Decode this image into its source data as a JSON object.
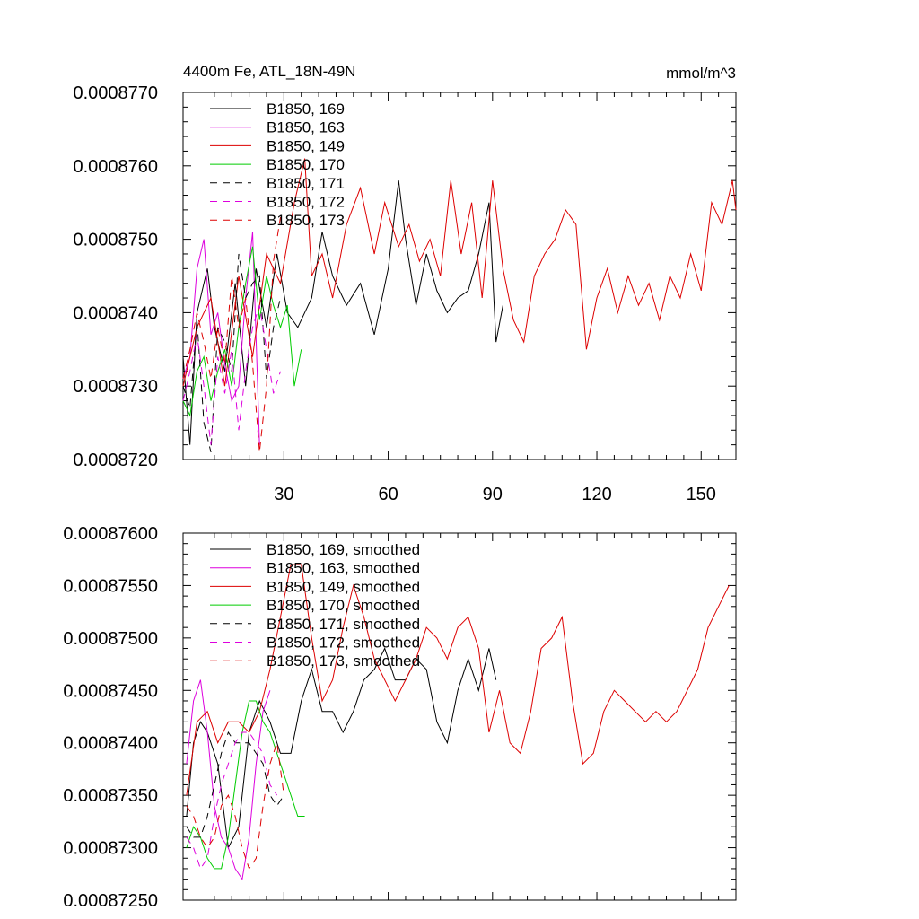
{
  "chart_data": [
    {
      "type": "line",
      "title": "4400m Fe, ATL_18N-49N",
      "units": "mmol/m^3",
      "xlim": [
        1,
        160
      ],
      "ylim": [
        0.000872,
        0.000877
      ],
      "x_ticks": [
        "30",
        "60",
        "90",
        "120",
        "150"
      ],
      "y_ticks": [
        "0.0008720",
        "0.0008730",
        "0.0008740",
        "0.0008750",
        "0.0008760",
        "0.0008770"
      ],
      "legend_position": "top-left",
      "series": [
        {
          "name": "B1850, 169",
          "color": "#000000",
          "dash": "solid",
          "x": [
            1,
            3,
            5,
            8,
            10,
            13,
            16,
            19,
            22,
            25,
            28,
            31,
            34,
            38,
            41,
            44,
            48,
            52,
            56,
            60,
            63,
            65,
            68,
            71,
            74,
            77,
            80,
            83,
            86,
            89,
            91,
            93
          ],
          "values": [
            0.0008734,
            0.0008722,
            0.000874,
            0.0008746,
            0.0008738,
            0.0008732,
            0.0008744,
            0.000873,
            0.0008746,
            0.0008738,
            0.0008748,
            0.000874,
            0.0008738,
            0.0008742,
            0.0008751,
            0.0008745,
            0.0008741,
            0.0008744,
            0.0008737,
            0.0008746,
            0.0008758,
            0.000875,
            0.0008741,
            0.0008748,
            0.0008743,
            0.000874,
            0.0008742,
            0.0008743,
            0.0008748,
            0.0008755,
            0.0008736,
            0.0008741
          ]
        },
        {
          "name": "B1850, 163",
          "color": "#dd00dd",
          "dash": "solid",
          "x": [
            1,
            3,
            5,
            7,
            9,
            11,
            13,
            15,
            17,
            19,
            21,
            23
          ],
          "values": [
            0.0008731,
            0.0008734,
            0.0008746,
            0.000875,
            0.0008737,
            0.000874,
            0.0008733,
            0.0008728,
            0.000873,
            0.0008742,
            0.0008751,
            0.0008722
          ]
        },
        {
          "name": "B1850, 149",
          "color": "#dd0000",
          "dash": "solid",
          "x": [
            1,
            5,
            9,
            13,
            17,
            21,
            25,
            29,
            33,
            36,
            38,
            41,
            44,
            48,
            52,
            56,
            59,
            63,
            66,
            69,
            72,
            75,
            78,
            81,
            84,
            87,
            90,
            93,
            96,
            99,
            102,
            105,
            108,
            111,
            114,
            117,
            120,
            123,
            126,
            129,
            132,
            135,
            138,
            141,
            144,
            147,
            150,
            153,
            156,
            159,
            160
          ],
          "values": [
            0.000873,
            0.0008738,
            0.0008742,
            0.000873,
            0.0008745,
            0.0008734,
            0.0008748,
            0.0008744,
            0.0008755,
            0.0008761,
            0.0008745,
            0.0008748,
            0.0008742,
            0.0008752,
            0.0008757,
            0.0008748,
            0.0008755,
            0.0008749,
            0.0008752,
            0.0008747,
            0.000875,
            0.0008745,
            0.0008758,
            0.0008748,
            0.0008755,
            0.0008742,
            0.0008758,
            0.0008746,
            0.0008739,
            0.0008736,
            0.0008745,
            0.0008748,
            0.000875,
            0.0008754,
            0.0008752,
            0.0008735,
            0.0008742,
            0.0008746,
            0.000874,
            0.0008745,
            0.0008741,
            0.0008744,
            0.0008739,
            0.0008745,
            0.0008742,
            0.0008748,
            0.0008743,
            0.0008755,
            0.0008752,
            0.0008758,
            0.0008754
          ]
        },
        {
          "name": "B1850, 170",
          "color": "#00cc00",
          "dash": "solid",
          "x": [
            1,
            3,
            5,
            7,
            9,
            11,
            13,
            15,
            17,
            19,
            21,
            23,
            25,
            27,
            29,
            31,
            33,
            35
          ],
          "values": [
            0.0008728,
            0.0008726,
            0.0008732,
            0.0008734,
            0.0008728,
            0.0008732,
            0.0008735,
            0.000873,
            0.0008738,
            0.0008744,
            0.0008749,
            0.0008739,
            0.0008745,
            0.0008741,
            0.0008738,
            0.0008741,
            0.000873,
            0.0008735
          ]
        },
        {
          "name": "B1850, 171",
          "color": "#000000",
          "dash": "dash",
          "x": [
            1,
            3,
            5,
            7,
            9,
            11,
            13,
            15,
            17,
            19,
            21,
            23,
            25,
            27,
            29
          ],
          "values": [
            0.000873,
            0.0008727,
            0.0008739,
            0.0008725,
            0.0008721,
            0.0008738,
            0.0008736,
            0.0008732,
            0.0008748,
            0.0008742,
            0.0008744,
            0.0008745,
            0.0008731,
            0.0008738,
            0.0008742
          ]
        },
        {
          "name": "B1850, 172",
          "color": "#dd00dd",
          "dash": "dash",
          "x": [
            1,
            3,
            5,
            7,
            9,
            11,
            13,
            15,
            17,
            19,
            21,
            23,
            25,
            27,
            29
          ],
          "values": [
            0.0008728,
            0.0008732,
            0.0008737,
            0.000873,
            0.0008722,
            0.0008734,
            0.0008729,
            0.0008735,
            0.0008724,
            0.0008732,
            0.0008738,
            0.0008741,
            0.0008735,
            0.0008729,
            0.0008732
          ]
        },
        {
          "name": "B1850, 173",
          "color": "#dd0000",
          "dash": "dash",
          "x": [
            1,
            3,
            5,
            7,
            9,
            11,
            13,
            15,
            17,
            19,
            21,
            23,
            25,
            27,
            29
          ],
          "values": [
            0.0008731,
            0.0008735,
            0.000874,
            0.0008736,
            0.0008731,
            0.0008738,
            0.0008733,
            0.0008745,
            0.0008738,
            0.0008742,
            0.0008733,
            0.0008721,
            0.000873,
            0.0008747,
            0.0008753
          ]
        }
      ]
    },
    {
      "type": "line",
      "xlim": [
        1,
        160
      ],
      "ylim": [
        0.0008725,
        0.000876
      ],
      "y_ticks": [
        "0.00087250",
        "0.00087300",
        "0.00087350",
        "0.00087400",
        "0.00087450",
        "0.00087500",
        "0.00087550",
        "0.00087600"
      ],
      "legend_position": "top-left",
      "series": [
        {
          "name": "B1850, 169, smoothed",
          "color": "#000000",
          "dash": "solid",
          "x": [
            2,
            4,
            6,
            8,
            11,
            14,
            17,
            20,
            23,
            26,
            29,
            32,
            35,
            38,
            41,
            44,
            47,
            50,
            53,
            56,
            59,
            62,
            65,
            68,
            71,
            74,
            77,
            80,
            83,
            86,
            89,
            91
          ],
          "values": [
            0.0008733,
            0.000874,
            0.0008742,
            0.0008741,
            0.0008738,
            0.000873,
            0.0008732,
            0.0008741,
            0.0008744,
            0.0008742,
            0.0008739,
            0.0008739,
            0.0008744,
            0.0008747,
            0.0008743,
            0.0008743,
            0.0008741,
            0.0008743,
            0.0008746,
            0.0008747,
            0.0008749,
            0.0008746,
            0.0008746,
            0.0008748,
            0.0008747,
            0.0008742,
            0.000874,
            0.0008745,
            0.0008748,
            0.0008745,
            0.0008749,
            0.0008746
          ]
        },
        {
          "name": "B1850, 163, smoothed",
          "color": "#dd00dd",
          "dash": "solid",
          "x": [
            2,
            4,
            6,
            8,
            10,
            12,
            14,
            16,
            18,
            20,
            22,
            24,
            26
          ],
          "values": [
            0.0008738,
            0.0008744,
            0.0008746,
            0.0008741,
            0.0008734,
            0.0008731,
            0.000873,
            0.0008728,
            0.0008727,
            0.0008731,
            0.0008738,
            0.0008743,
            0.0008745
          ]
        },
        {
          "name": "B1850, 149, smoothed",
          "color": "#dd0000",
          "dash": "solid",
          "x": [
            2,
            5,
            8,
            11,
            14,
            17,
            20,
            23,
            26,
            29,
            32,
            35,
            38,
            41,
            44,
            47,
            50,
            53,
            56,
            59,
            62,
            65,
            68,
            71,
            74,
            77,
            80,
            83,
            86,
            89,
            92,
            95,
            98,
            101,
            104,
            107,
            110,
            113,
            116,
            119,
            122,
            125,
            128,
            131,
            134,
            137,
            140,
            143,
            146,
            149,
            152,
            155,
            158
          ],
          "values": [
            0.0008735,
            0.0008742,
            0.0008743,
            0.000874,
            0.0008742,
            0.0008742,
            0.0008741,
            0.0008743,
            0.0008747,
            0.0008752,
            0.0008757,
            0.0008757,
            0.000875,
            0.0008744,
            0.0008746,
            0.0008751,
            0.0008755,
            0.0008752,
            0.0008748,
            0.0008746,
            0.0008744,
            0.0008746,
            0.0008748,
            0.0008751,
            0.000875,
            0.0008748,
            0.0008751,
            0.0008752,
            0.0008749,
            0.0008741,
            0.0008745,
            0.000874,
            0.0008739,
            0.0008743,
            0.0008749,
            0.000875,
            0.0008752,
            0.0008744,
            0.0008738,
            0.0008739,
            0.0008743,
            0.0008745,
            0.0008744,
            0.0008743,
            0.0008742,
            0.0008743,
            0.0008742,
            0.0008743,
            0.0008745,
            0.0008747,
            0.0008751,
            0.0008753,
            0.0008755
          ]
        },
        {
          "name": "B1850, 170, smoothed",
          "color": "#00cc00",
          "dash": "solid",
          "x": [
            2,
            4,
            6,
            8,
            10,
            12,
            14,
            16,
            18,
            20,
            22,
            24,
            26,
            28,
            30,
            32,
            34,
            36
          ],
          "values": [
            0.000873,
            0.0008732,
            0.0008731,
            0.0008729,
            0.0008728,
            0.0008728,
            0.0008731,
            0.0008736,
            0.0008741,
            0.0008744,
            0.0008744,
            0.0008742,
            0.0008741,
            0.0008739,
            0.0008737,
            0.0008735,
            0.0008733,
            0.0008733
          ]
        },
        {
          "name": "B1850, 171, smoothed",
          "color": "#000000",
          "dash": "dash",
          "x": [
            2,
            4,
            6,
            8,
            10,
            12,
            14,
            16,
            18,
            20,
            22,
            24,
            26,
            28,
            30
          ],
          "values": [
            0.0008732,
            0.0008731,
            0.0008731,
            0.0008733,
            0.0008736,
            0.0008739,
            0.0008741,
            0.000874,
            0.000874,
            0.000874,
            0.0008739,
            0.0008738,
            0.0008735,
            0.0008734,
            0.0008735
          ]
        },
        {
          "name": "B1850, 172, smoothed",
          "color": "#dd00dd",
          "dash": "dash",
          "x": [
            2,
            4,
            6,
            8,
            10,
            12,
            14,
            16,
            18,
            20,
            22,
            24,
            26,
            28
          ],
          "values": [
            0.0008731,
            0.000873,
            0.0008728,
            0.0008729,
            0.0008733,
            0.0008736,
            0.0008738,
            0.000874,
            0.0008741,
            0.0008741,
            0.000874,
            0.0008739,
            0.0008736,
            0.0008735
          ]
        },
        {
          "name": "B1850, 173, smoothed",
          "color": "#dd0000",
          "dash": "dash",
          "x": [
            2,
            4,
            6,
            8,
            10,
            12,
            14,
            16,
            18,
            20,
            22,
            24,
            26,
            28,
            30
          ],
          "values": [
            0.0008734,
            0.0008733,
            0.0008731,
            0.000873,
            0.0008731,
            0.0008734,
            0.0008735,
            0.0008733,
            0.000873,
            0.0008728,
            0.0008729,
            0.0008734,
            0.0008738,
            0.000874,
            0.0008735
          ]
        }
      ]
    }
  ]
}
